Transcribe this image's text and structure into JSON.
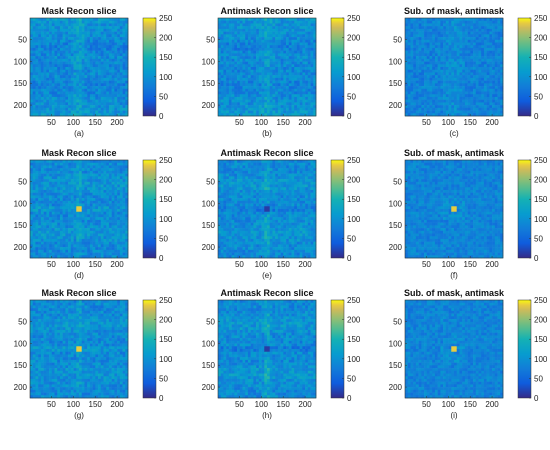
{
  "chart_data": [
    {
      "type": "heatmap",
      "title": "Mask Recon slice",
      "caption": "(a)",
      "pattern": "grid",
      "xticks": [
        "50",
        "100",
        "150",
        "200"
      ],
      "yticks": [
        "50",
        "100",
        "150",
        "200"
      ],
      "cbar_ticks": [
        "250",
        "200",
        "150",
        "100",
        "50",
        "0"
      ],
      "cbar_range": [
        0,
        250
      ],
      "xlim": [
        1,
        225
      ],
      "ylim": [
        1,
        225
      ]
    },
    {
      "type": "heatmap",
      "title": "Antimask Recon slice",
      "caption": "(b)",
      "pattern": "grid",
      "xticks": [
        "50",
        "100",
        "150",
        "200"
      ],
      "yticks": [
        "50",
        "100",
        "150",
        "200"
      ],
      "cbar_ticks": [
        "250",
        "200",
        "150",
        "100",
        "50",
        "0"
      ],
      "cbar_range": [
        0,
        250
      ],
      "xlim": [
        1,
        225
      ],
      "ylim": [
        1,
        225
      ]
    },
    {
      "type": "heatmap",
      "title": "Sub. of mask, antimask",
      "caption": "(c)",
      "pattern": "diff",
      "xticks": [
        "50",
        "100",
        "150",
        "200"
      ],
      "yticks": [
        "50",
        "100",
        "150",
        "200"
      ],
      "cbar_ticks": [
        "250",
        "200",
        "150",
        "100",
        "50",
        "0"
      ],
      "cbar_range": [
        0,
        250
      ],
      "xlim": [
        1,
        225
      ],
      "ylim": [
        1,
        225
      ]
    },
    {
      "type": "heatmap",
      "title": "Mask Recon slice",
      "caption": "(d)",
      "pattern": "cross_bright",
      "xticks": [
        "50",
        "100",
        "150",
        "200"
      ],
      "yticks": [
        "50",
        "100",
        "150",
        "200"
      ],
      "cbar_ticks": [
        "250",
        "200",
        "150",
        "100",
        "50",
        "0"
      ],
      "cbar_range": [
        0,
        250
      ],
      "xlim": [
        1,
        225
      ],
      "ylim": [
        1,
        225
      ]
    },
    {
      "type": "heatmap",
      "title": "Antimask Recon slice",
      "caption": "(e)",
      "pattern": "cross_dark",
      "xticks": [
        "50",
        "100",
        "150",
        "200"
      ],
      "yticks": [
        "50",
        "100",
        "150",
        "200"
      ],
      "cbar_ticks": [
        "250",
        "200",
        "150",
        "100",
        "50",
        "0"
      ],
      "cbar_range": [
        0,
        250
      ],
      "xlim": [
        1,
        225
      ],
      "ylim": [
        1,
        225
      ]
    },
    {
      "type": "heatmap",
      "title": "Sub. of mask, antimask",
      "caption": "(f)",
      "pattern": "center_bright",
      "xticks": [
        "50",
        "100",
        "150",
        "200"
      ],
      "yticks": [
        "50",
        "100",
        "150",
        "200"
      ],
      "cbar_ticks": [
        "250",
        "200",
        "150",
        "100",
        "50",
        "0"
      ],
      "cbar_range": [
        0,
        250
      ],
      "xlim": [
        1,
        225
      ],
      "ylim": [
        1,
        225
      ]
    },
    {
      "type": "heatmap",
      "title": "Mask Recon slice",
      "caption": "(g)",
      "pattern": "cross_bright",
      "xticks": [
        "50",
        "100",
        "150",
        "200"
      ],
      "yticks": [
        "50",
        "100",
        "150",
        "200"
      ],
      "cbar_ticks": [
        "250",
        "200",
        "150",
        "100",
        "50",
        "0"
      ],
      "cbar_range": [
        0,
        250
      ],
      "xlim": [
        1,
        225
      ],
      "ylim": [
        1,
        225
      ]
    },
    {
      "type": "heatmap",
      "title": "Antimask Recon slice",
      "caption": "(h)",
      "pattern": "cross_dark",
      "xticks": [
        "50",
        "100",
        "150",
        "200"
      ],
      "yticks": [
        "50",
        "100",
        "150",
        "200"
      ],
      "cbar_ticks": [
        "250",
        "200",
        "150",
        "100",
        "50",
        "0"
      ],
      "cbar_range": [
        0,
        250
      ],
      "xlim": [
        1,
        225
      ],
      "ylim": [
        1,
        225
      ]
    },
    {
      "type": "heatmap",
      "title": "Sub. of mask, antimask",
      "caption": "(i)",
      "pattern": "center_bright",
      "xticks": [
        "50",
        "100",
        "150",
        "200"
      ],
      "yticks": [
        "50",
        "100",
        "150",
        "200"
      ],
      "cbar_ticks": [
        "250",
        "200",
        "150",
        "100",
        "50",
        "0"
      ],
      "cbar_range": [
        0,
        250
      ],
      "xlim": [
        1,
        225
      ],
      "ylim": [
        1,
        225
      ]
    }
  ]
}
